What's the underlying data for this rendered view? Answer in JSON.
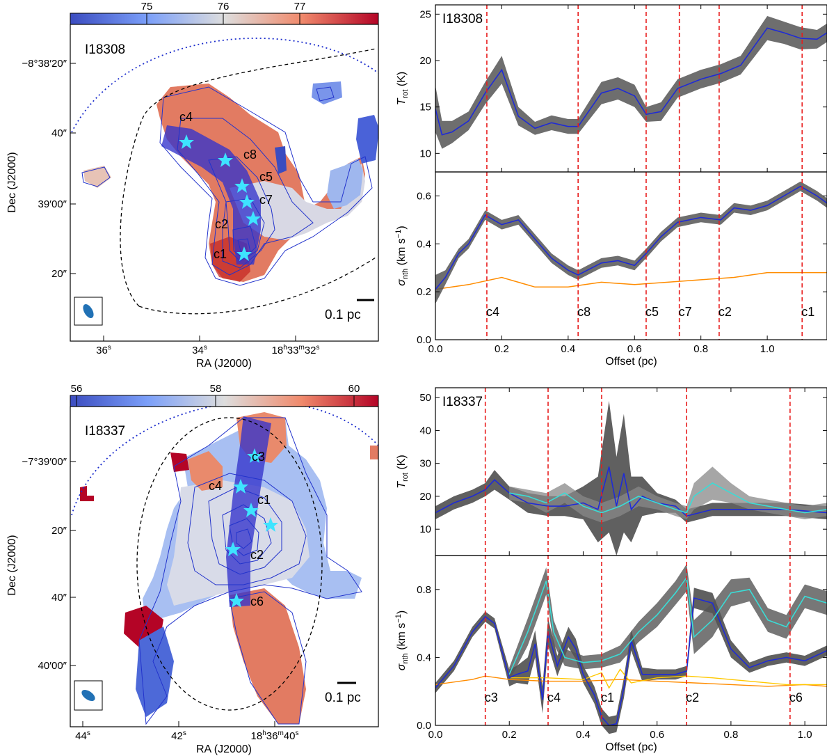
{
  "figure": {
    "panels": [
      {
        "field": "I18308",
        "colorbar_ticks": [
          "75",
          "76",
          "77"
        ],
        "ra_ticks": [
          "36",
          "34",
          "18",
          "33",
          "32"
        ],
        "dec_ticks": [
          "−8°38′20″",
          "40″",
          "39′00″",
          "20″"
        ],
        "xlabel": "RA (J2000)",
        "ylabel": "Dec (J2000)",
        "scalebar": "0.1 pc",
        "cores": [
          "c4",
          "c8",
          "c5",
          "c7",
          "c2",
          "c1"
        ]
      },
      {
        "field": "I18337",
        "colorbar_ticks": [
          "56",
          "58",
          "60"
        ],
        "ra_ticks": [
          "44",
          "42",
          "18",
          "36",
          "40"
        ],
        "dec_ticks": [
          "−7°39′00″",
          "20″",
          "40″",
          "40′00″"
        ],
        "xlabel": "RA (J2000)",
        "ylabel": "Dec (J2000)",
        "scalebar": "0.1 pc",
        "cores": [
          "c3",
          "c4",
          "c1",
          "c2",
          "c6"
        ]
      }
    ]
  },
  "chart_data": [
    {
      "type": "line",
      "field": "I18308",
      "xlabel": "Offset (pc)",
      "ylabel_top": "T_rot (K)",
      "ylabel_bottom": "σ_nth (km s⁻¹)",
      "xlim": [
        0.0,
        1.18
      ],
      "ylim_top": [
        8,
        26
      ],
      "ylim_bottom": [
        0.0,
        0.7
      ],
      "xticks": [
        "0.0",
        "0.2",
        "0.4",
        "0.6",
        "0.8",
        "1.0"
      ],
      "yticks_top": [
        "10",
        "15",
        "20",
        "25"
      ],
      "yticks_bottom": [
        "0.0",
        "0.2",
        "0.4",
        "0.6"
      ],
      "core_markers": [
        {
          "name": "c4",
          "x": 0.155
        },
        {
          "name": "c8",
          "x": 0.43
        },
        {
          "name": "c5",
          "x": 0.635
        },
        {
          "name": "c7",
          "x": 0.735
        },
        {
          "name": "c2",
          "x": 0.855
        },
        {
          "name": "c1",
          "x": 1.105
        }
      ],
      "t_rot": {
        "x": [
          0.0,
          0.02,
          0.05,
          0.1,
          0.15,
          0.2,
          0.25,
          0.3,
          0.35,
          0.4,
          0.43,
          0.5,
          0.55,
          0.6,
          0.635,
          0.68,
          0.73,
          0.8,
          0.86,
          0.92,
          0.97,
          1.0,
          1.05,
          1.1,
          1.15,
          1.18
        ],
        "y": [
          14.8,
          12.0,
          12.3,
          13.5,
          16.5,
          19.0,
          14.0,
          12.7,
          13.3,
          12.9,
          12.9,
          16.5,
          17.0,
          16.2,
          14.2,
          14.5,
          17.0,
          18.0,
          18.6,
          19.5,
          22.0,
          23.5,
          23.0,
          22.4,
          22.3,
          23.0
        ],
        "err": [
          2.5,
          1.5,
          1.2,
          1.0,
          1.2,
          1.5,
          1.0,
          0.7,
          0.8,
          0.8,
          0.8,
          1.2,
          1.2,
          1.2,
          0.8,
          1.0,
          1.0,
          1.0,
          1.0,
          1.0,
          1.2,
          1.3,
          1.2,
          1.2,
          1.0,
          1.0
        ]
      },
      "sigma_nth": {
        "x": [
          0.0,
          0.03,
          0.07,
          0.1,
          0.15,
          0.2,
          0.25,
          0.3,
          0.35,
          0.4,
          0.43,
          0.5,
          0.55,
          0.6,
          0.635,
          0.68,
          0.73,
          0.8,
          0.86,
          0.9,
          0.95,
          1.0,
          1.05,
          1.1,
          1.15,
          1.18
        ],
        "y": [
          0.21,
          0.26,
          0.36,
          0.4,
          0.52,
          0.48,
          0.5,
          0.42,
          0.34,
          0.29,
          0.27,
          0.32,
          0.33,
          0.31,
          0.36,
          0.43,
          0.49,
          0.51,
          0.5,
          0.55,
          0.54,
          0.56,
          0.6,
          0.64,
          0.6,
          0.57
        ],
        "err": [
          0.06,
          0.03,
          0.02,
          0.02,
          0.02,
          0.02,
          0.02,
          0.02,
          0.02,
          0.02,
          0.02,
          0.02,
          0.02,
          0.02,
          0.02,
          0.02,
          0.02,
          0.02,
          0.02,
          0.02,
          0.02,
          0.02,
          0.02,
          0.02,
          0.02,
          0.02
        ]
      },
      "sigma_thermal": {
        "x": [
          0.0,
          0.1,
          0.2,
          0.3,
          0.4,
          0.5,
          0.6,
          0.7,
          0.8,
          0.9,
          1.0,
          1.1,
          1.18
        ],
        "y": [
          0.21,
          0.23,
          0.26,
          0.22,
          0.22,
          0.24,
          0.23,
          0.24,
          0.25,
          0.26,
          0.28,
          0.28,
          0.28
        ]
      }
    },
    {
      "type": "line",
      "field": "I18337",
      "xlabel": "Offset (pc)",
      "ylabel_top": "T_rot (K)",
      "ylabel_bottom": "σ_nth (km s⁻¹)",
      "xlim": [
        0.0,
        1.06
      ],
      "ylim_top": [
        2,
        53
      ],
      "ylim_bottom": [
        0.0,
        1.0
      ],
      "xticks": [
        "0.0",
        "0.2",
        "0.4",
        "0.6",
        "0.8",
        "1.0"
      ],
      "yticks_top": [
        "10",
        "20",
        "30",
        "40",
        "50"
      ],
      "yticks_bottom": [
        "0.0",
        "0.4",
        "0.8"
      ],
      "core_markers": [
        {
          "name": "c3",
          "x": 0.135
        },
        {
          "name": "c4",
          "x": 0.305
        },
        {
          "name": "c1",
          "x": 0.45
        },
        {
          "name": "c2",
          "x": 0.68
        },
        {
          "name": "c6",
          "x": 0.96
        }
      ],
      "t_rot_main": {
        "x": [
          0.0,
          0.05,
          0.1,
          0.135,
          0.16,
          0.2,
          0.25,
          0.305,
          0.35,
          0.4,
          0.44,
          0.47,
          0.49,
          0.51,
          0.53,
          0.56,
          0.6,
          0.65,
          0.68,
          0.75,
          0.85,
          0.95,
          1.06
        ],
        "y": [
          15,
          18,
          20,
          22,
          25,
          21,
          18,
          17,
          17,
          18,
          16,
          29,
          17,
          27,
          16,
          20,
          18,
          17,
          14,
          16,
          16,
          16,
          15
        ],
        "err": [
          2,
          2,
          2,
          2,
          3,
          2,
          3,
          3,
          3,
          5,
          10,
          20,
          15,
          18,
          10,
          6,
          3,
          2,
          2,
          2,
          2,
          2,
          2
        ]
      },
      "t_rot_second": {
        "x": [
          0.2,
          0.25,
          0.3,
          0.35,
          0.4,
          0.45,
          0.5,
          0.55,
          0.6,
          0.65,
          0.68,
          0.7,
          0.75,
          0.8,
          0.85,
          0.9,
          0.95,
          1.0,
          1.06
        ],
        "y": [
          21,
          20,
          18,
          21,
          17,
          15,
          17,
          20,
          18,
          16,
          15,
          20,
          24,
          21,
          18,
          17,
          16,
          15,
          16
        ],
        "err": [
          2,
          2,
          3,
          3,
          3,
          3,
          3,
          3,
          2,
          2,
          2,
          4,
          5,
          3,
          2,
          2,
          2,
          2,
          2
        ]
      },
      "sigma_nth_main": {
        "x": [
          0.0,
          0.05,
          0.1,
          0.135,
          0.16,
          0.2,
          0.22,
          0.25,
          0.27,
          0.29,
          0.305,
          0.33,
          0.36,
          0.38,
          0.4,
          0.43,
          0.45,
          0.47,
          0.49,
          0.51,
          0.53,
          0.56,
          0.6,
          0.65,
          0.68,
          0.7,
          0.75,
          0.8,
          0.85,
          0.9,
          0.95,
          1.0,
          1.06
        ],
        "y": [
          0.22,
          0.35,
          0.55,
          0.64,
          0.6,
          0.28,
          0.3,
          0.32,
          0.48,
          0.15,
          0.55,
          0.35,
          0.52,
          0.45,
          0.3,
          0.18,
          0.05,
          0.0,
          0.01,
          0.22,
          0.5,
          0.3,
          0.3,
          0.3,
          0.32,
          0.75,
          0.72,
          0.45,
          0.34,
          0.38,
          0.4,
          0.38,
          0.44
        ],
        "err": [
          0.03,
          0.03,
          0.03,
          0.03,
          0.03,
          0.05,
          0.05,
          0.08,
          0.08,
          0.08,
          0.08,
          0.06,
          0.06,
          0.06,
          0.05,
          0.05,
          0.05,
          0.05,
          0.05,
          0.06,
          0.06,
          0.04,
          0.03,
          0.03,
          0.03,
          0.06,
          0.06,
          0.05,
          0.03,
          0.03,
          0.03,
          0.03,
          0.03
        ]
      },
      "sigma_nth_second": {
        "x": [
          0.2,
          0.25,
          0.3,
          0.32,
          0.35,
          0.4,
          0.45,
          0.5,
          0.55,
          0.6,
          0.65,
          0.68,
          0.7,
          0.75,
          0.8,
          0.85,
          0.9,
          0.95,
          1.0,
          1.06
        ],
        "y": [
          0.3,
          0.55,
          0.85,
          0.55,
          0.4,
          0.37,
          0.38,
          0.42,
          0.55,
          0.65,
          0.78,
          0.87,
          0.52,
          0.62,
          0.78,
          0.8,
          0.62,
          0.58,
          0.76,
          0.72
        ],
        "err": [
          0.04,
          0.08,
          0.08,
          0.07,
          0.05,
          0.04,
          0.04,
          0.05,
          0.06,
          0.07,
          0.07,
          0.08,
          0.1,
          0.1,
          0.08,
          0.07,
          0.07,
          0.07,
          0.07,
          0.07
        ]
      },
      "sigma_thermal_1": {
        "x": [
          0.0,
          0.1,
          0.135,
          0.2,
          0.3,
          0.4,
          0.5,
          0.6,
          0.7,
          0.8,
          0.9,
          1.0,
          1.06
        ],
        "y": [
          0.24,
          0.27,
          0.29,
          0.27,
          0.26,
          0.26,
          0.27,
          0.26,
          0.25,
          0.24,
          0.23,
          0.24,
          0.23
        ]
      },
      "sigma_thermal_2": {
        "x": [
          0.2,
          0.3,
          0.4,
          0.45,
          0.47,
          0.5,
          0.53,
          0.6,
          0.68,
          0.75,
          0.85,
          0.95,
          1.06
        ],
        "y": [
          0.28,
          0.28,
          0.27,
          0.31,
          0.22,
          0.33,
          0.25,
          0.28,
          0.29,
          0.28,
          0.26,
          0.24,
          0.24
        ]
      }
    }
  ]
}
